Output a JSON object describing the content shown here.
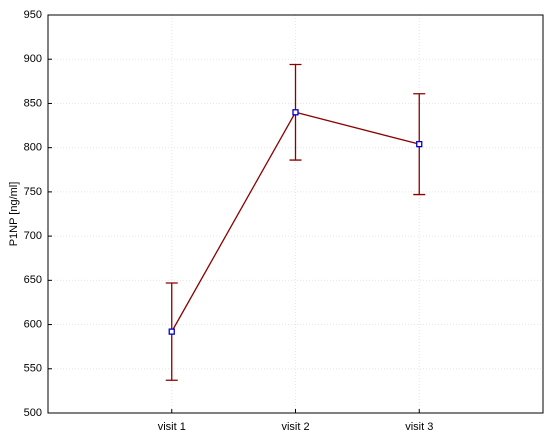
{
  "chart_data": {
    "type": "line",
    "y_label": "P1NP [ng/ml]",
    "categories": [
      "visit 1",
      "visit 2",
      "visit 3"
    ],
    "series": [
      {
        "color": "#8b0000",
        "marker_color": "#0000cc",
        "values": [
          592,
          840,
          804
        ],
        "errors": [
          55,
          54,
          57
        ]
      }
    ],
    "ylim": [
      500,
      950
    ],
    "yticks": [
      500,
      550,
      600,
      650,
      700,
      750,
      800,
      850,
      900,
      950
    ],
    "grid": true
  }
}
